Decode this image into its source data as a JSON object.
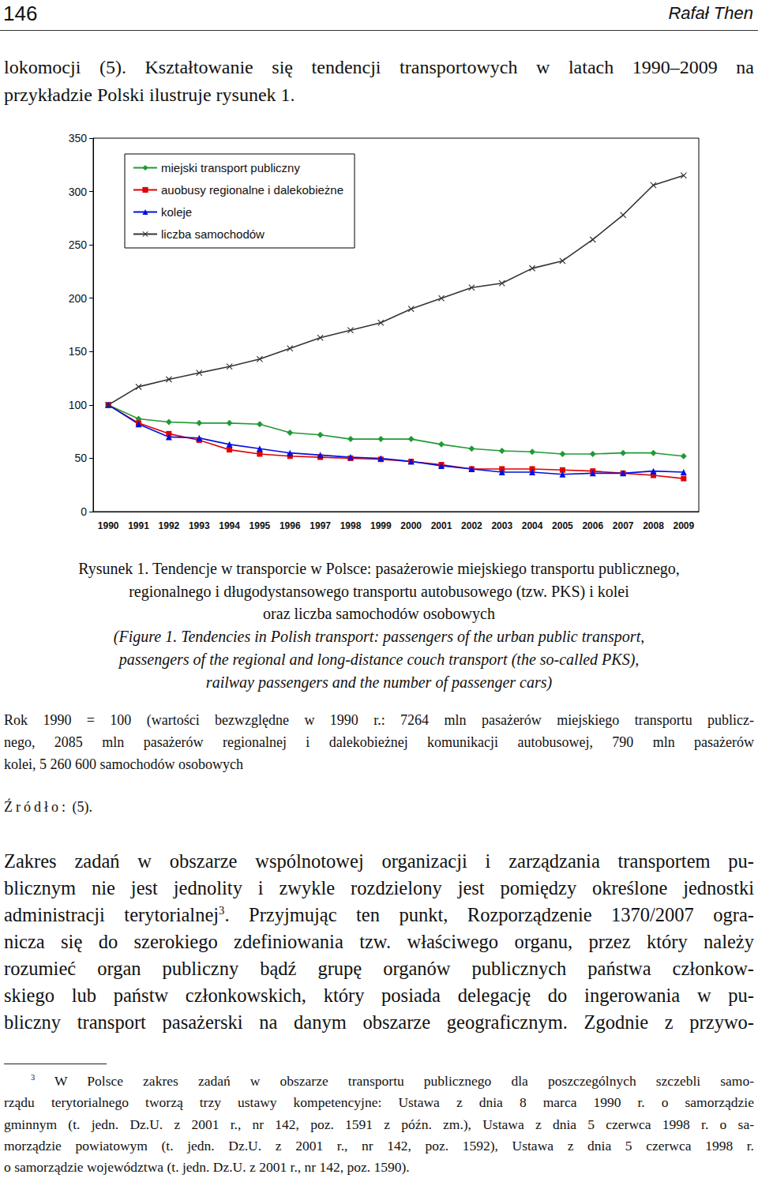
{
  "header": {
    "page_number": "146",
    "author": "Rafał Then"
  },
  "intro_lines": [
    "lokomocji (5). Kształtowanie się tendencji transportowych w latach 1990–2009 na",
    "przykładzie Polski ilustruje rysunek 1."
  ],
  "chart_data": {
    "type": "line",
    "categories": [
      "1990",
      "1991",
      "1992",
      "1993",
      "1994",
      "1995",
      "1996",
      "1997",
      "1998",
      "1999",
      "2000",
      "2001",
      "2002",
      "2003",
      "2004",
      "2005",
      "2006",
      "2007",
      "2008",
      "2009"
    ],
    "series": [
      {
        "name": "miejski transport publiczny",
        "color": "#1f9a35",
        "marker": "diamond",
        "values": [
          100,
          87,
          84,
          83,
          83,
          82,
          74,
          72,
          68,
          68,
          68,
          63,
          59,
          57,
          56,
          54,
          54,
          55,
          55,
          52
        ]
      },
      {
        "name": "auobusy regionalne i dalekobieżne",
        "color": "#e00000",
        "marker": "square",
        "values": [
          100,
          83,
          73,
          67,
          58,
          54,
          52,
          51,
          50,
          49,
          47,
          44,
          40,
          40,
          40,
          39,
          38,
          36,
          34,
          31
        ]
      },
      {
        "name": "koleje",
        "color": "#0010e0",
        "marker": "triangle",
        "values": [
          100,
          82,
          70,
          69,
          63,
          59,
          55,
          53,
          51,
          50,
          47,
          43,
          40,
          37,
          37,
          35,
          36,
          36,
          38,
          37
        ]
      },
      {
        "name": "liczba samochodów",
        "color": "#333333",
        "marker": "x",
        "values": [
          100,
          117,
          124,
          130,
          136,
          143,
          153,
          163,
          170,
          177,
          190,
          200,
          210,
          214,
          228,
          235,
          255,
          278,
          306,
          315
        ]
      }
    ],
    "ylim": [
      0,
      350
    ],
    "yticks": [
      0,
      50,
      100,
      150,
      200,
      250,
      300,
      350
    ],
    "grid": false,
    "legend": "top-left"
  },
  "caption": {
    "lines_pl": [
      "Rysunek 1. Tendencje w transporcie w Polsce: pasażerowie miejskiego transportu publicznego,",
      "regionalnego i długodystansowego transportu autobusowego (tzw. PKS) i kolei",
      "oraz liczba samochodów osobowych"
    ],
    "lines_en": [
      "(Figure 1. Tendencies in Polish transport: passengers of the urban public transport,",
      "passengers of the regional and long-distance couch transport (the so-called PKS),",
      "railway passengers and the number of passenger cars)"
    ]
  },
  "note_lines": [
    "Rok 1990 = 100 (wartości bezwzględne w 1990 r.: 7264 mln pasażerów miejskiego transportu publicz-",
    "nego, 2085 mln pasażerów regionalnej i dalekobieżnej komunikacji autobusowej, 790 mln pasażerów",
    "kolei, 5 260 600 samochodów osobowych"
  ],
  "source": {
    "label": "Źródło:",
    "text": "(5)."
  },
  "body_lines": [
    [
      "Zakres zadań w obszarze wspólnotowej organizacji i zarządzania transportem pu-"
    ],
    [
      "blicznym nie jest jednolity i zwykle rozdzielony jest pomiędzy określone jednostki"
    ],
    [
      "administracji terytorialnej",
      {
        "sup": "3"
      },
      ". Przyjmując ten punkt, Rozporządzenie 1370/2007 ogra-"
    ],
    [
      "nicza się do szerokiego zdefiniowania tzw. właściwego organu, przez który należy"
    ],
    [
      "rozumieć organ publiczny bądź grupę organów publicznych państwa członkow-"
    ],
    [
      "skiego lub państw członkowskich, który posiada delegację do ingerowania w pu-"
    ],
    [
      "bliczny transport pasażerski na danym obszarze geograficznym. Zgodnie z przywo-"
    ]
  ],
  "footnote": {
    "mark": "3",
    "lines": [
      "W Polsce zakres zadań w obszarze transportu publicznego dla poszczególnych szczebli samo-",
      "rządu terytorialnego tworzą trzy ustawy kompetencyjne: Ustawa z dnia 8 marca 1990 r. o samorządzie",
      "gminnym (t. jedn. Dz.U. z 2001 r., nr 142, poz. 1591 z późn. zm.), Ustawa z dnia 5 czerwca 1998 r. o sa-",
      "morządzie powiatowym (t. jedn. Dz.U. z 2001 r., nr 142, poz. 1592), Ustawa z dnia 5 czerwca 1998 r.",
      "o samorządzie województwa (t. jedn. Dz.U. z 2001 r., nr 142, poz. 1590)."
    ]
  }
}
